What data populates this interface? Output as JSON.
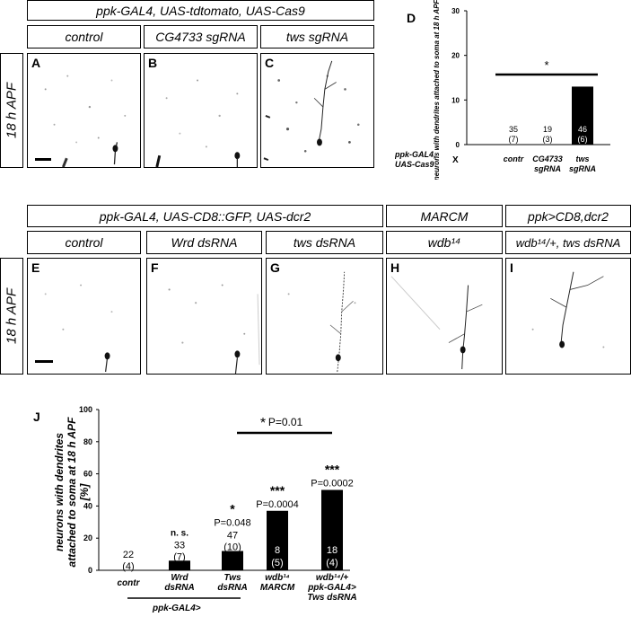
{
  "top": {
    "header": "ppk-GAL4, UAS-tdtomato, UAS-Cas9",
    "conditions": [
      "control",
      "CG4733 sgRNA",
      "tws sgRNA"
    ],
    "panels": [
      "A",
      "B",
      "C"
    ],
    "side_label": "18 h APF"
  },
  "middle": {
    "header_main": "ppk-GAL4, UAS-CD8::GFP, UAS-dcr2",
    "header_marcm": "MARCM",
    "header_ppk": "ppk>CD8,dcr2",
    "conditions": [
      "control",
      "Wrd dsRNA",
      "tws dsRNA",
      "wdb¹⁴",
      "wdb¹⁴/+, tws dsRNA"
    ],
    "panels": [
      "E",
      "F",
      "G",
      "H",
      "I"
    ],
    "side_label": "18 h APF"
  },
  "chart_D": {
    "panel_label": "D",
    "chart_data": {
      "type": "bar",
      "categories": [
        "contr",
        "CG4733 sgRNA",
        "tws sgRNA"
      ],
      "values": [
        0,
        0,
        13
      ],
      "n_neurons": [
        "35",
        "19",
        "46"
      ],
      "n_animals": [
        "(7)",
        "(3)",
        "(6)"
      ],
      "ylabel": "neurons with dendrites attached to soma at 18 h APF [%]",
      "yticks": [
        "0",
        "10",
        "20",
        "30"
      ],
      "ylim": [
        0,
        30
      ],
      "genotype_label": "ppk-GAL4, UAS-Cas9",
      "cross_symbol": "X",
      "significance": "*"
    }
  },
  "chart_J": {
    "panel_label": "J",
    "chart_data": {
      "type": "bar",
      "categories": [
        "contr",
        "Wrd dsRNA",
        "Tws dsRNA",
        "wdb¹⁴ MARCM",
        "wdb¹⁴/+ ppk-GAL4> Tws dsRNA"
      ],
      "values": [
        0,
        6,
        12,
        37,
        50
      ],
      "n_neurons": [
        "22",
        "33",
        "47",
        "8",
        "18"
      ],
      "n_animals": [
        "(4)",
        "(7)",
        "(10)",
        "(5)",
        "(4)"
      ],
      "significance": [
        "",
        "n. s.",
        "*",
        "***",
        "***"
      ],
      "p_values": [
        "",
        "",
        "P=0.048",
        "P=0.0004",
        "P=0.0002"
      ],
      "ylabel": "neurons with dendrites attached to soma at 18 h APF [%]",
      "yticks": [
        "0",
        "20",
        "40",
        "60",
        "80",
        "100"
      ],
      "ylim": [
        0,
        100
      ],
      "group_label": "ppk-GAL4>",
      "comparison_star": "*",
      "comparison_p": "P=0.01"
    }
  }
}
